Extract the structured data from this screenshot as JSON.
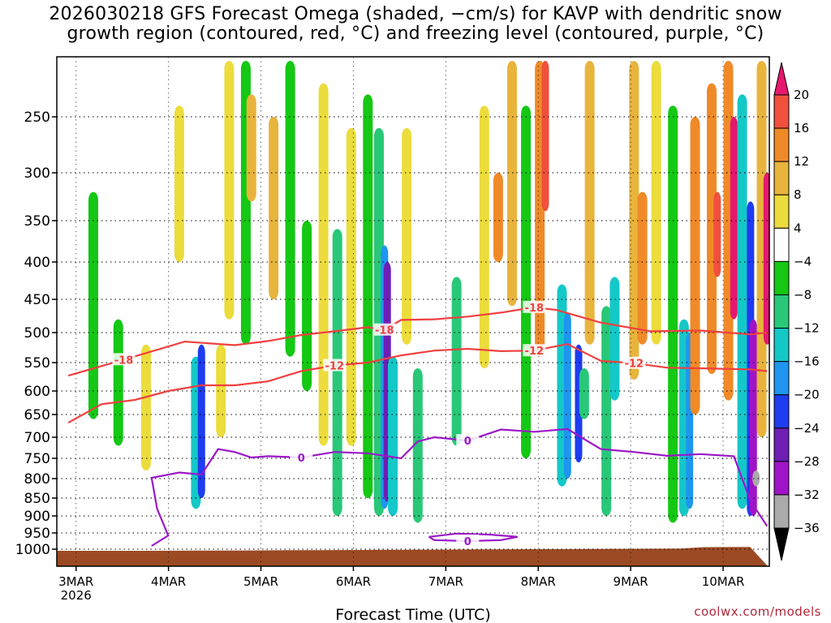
{
  "title_line1": "2026030218 GFS Forecast Omega (shaded, −cm/s) for KAVP with dendritic snow",
  "title_line2": "growth region (contoured, red, °C) and freezing level (contoured, purple, °C)",
  "credit": "coolwx.com/models",
  "chart_data": {
    "type": "heatmap",
    "title": "2026030218 GFS Forecast Omega (shaded, −cm/s) for KAVP with dendritic snow growth region (contoured, red, °C) and freezing level (contoured, purple, °C)",
    "xlabel": "Forecast Time (UTC)",
    "ylabel": "",
    "x_ticks": [
      "3MAR",
      "4MAR",
      "5MAR",
      "6MAR",
      "7MAR",
      "8MAR",
      "9MAR",
      "10MAR"
    ],
    "x_year": "2026",
    "xlim_hours": [
      -5,
      180
    ],
    "y_ticks": [
      250,
      300,
      350,
      400,
      450,
      500,
      550,
      600,
      650,
      700,
      750,
      800,
      850,
      900,
      950,
      1000
    ],
    "ylim_hpa": [
      200,
      1010
    ],
    "colorbar": {
      "ticks": [
        "20",
        "16",
        "12",
        "8",
        "4",
        "−4",
        "−8",
        "−12",
        "−16",
        "−20",
        "−24",
        "−28",
        "−32",
        "−36"
      ],
      "colors": [
        "#e5186e",
        "#f0503c",
        "#f08a28",
        "#e8b43c",
        "#ecdc3c",
        "#ffffff",
        "#14c814",
        "#28c878",
        "#14c8c8",
        "#1e96f0",
        "#1e3cf0",
        "#6e1eb4",
        "#a014c8",
        "#aaaaaa",
        "#000000"
      ]
    },
    "omega_regions": [
      {
        "x": 9,
        "p1": 320,
        "p2": 660,
        "v": -6
      },
      {
        "x": 18,
        "p1": 480,
        "p2": 720,
        "v": -6
      },
      {
        "x": 28,
        "p1": 520,
        "p2": 780,
        "v": 4
      },
      {
        "x": 40,
        "p1": 240,
        "p2": 400,
        "v": 5
      },
      {
        "x": 46,
        "p1": 540,
        "p2": 880,
        "v": -14
      },
      {
        "x": 48,
        "p1": 520,
        "p2": 850,
        "v": -22
      },
      {
        "x": 55,
        "p1": 520,
        "p2": 700,
        "v": 6
      },
      {
        "x": 58,
        "p1": 200,
        "p2": 480,
        "v": 6
      },
      {
        "x": 64,
        "p1": 200,
        "p2": 520,
        "v": -7
      },
      {
        "x": 66,
        "p1": 230,
        "p2": 330,
        "v": 10
      },
      {
        "x": 74,
        "p1": 250,
        "p2": 450,
        "v": 8
      },
      {
        "x": 80,
        "p1": 200,
        "p2": 540,
        "v": -6
      },
      {
        "x": 86,
        "p1": 350,
        "p2": 600,
        "v": -7
      },
      {
        "x": 92,
        "p1": 220,
        "p2": 720,
        "v": 6
      },
      {
        "x": 97,
        "p1": 360,
        "p2": 900,
        "v": -8
      },
      {
        "x": 102,
        "p1": 260,
        "p2": 720,
        "v": 5
      },
      {
        "x": 108,
        "p1": 230,
        "p2": 850,
        "v": -6
      },
      {
        "x": 112,
        "p1": 260,
        "p2": 900,
        "v": -10
      },
      {
        "x": 114,
        "p1": 380,
        "p2": 880,
        "v": -18
      },
      {
        "x": 115,
        "p1": 400,
        "p2": 860,
        "v": -26
      },
      {
        "x": 117,
        "p1": 540,
        "p2": 900,
        "v": -14
      },
      {
        "x": 122,
        "p1": 260,
        "p2": 520,
        "v": 6
      },
      {
        "x": 126,
        "p1": 560,
        "p2": 920,
        "v": -8
      },
      {
        "x": 140,
        "p1": 420,
        "p2": 720,
        "v": -8
      },
      {
        "x": 150,
        "p1": 240,
        "p2": 560,
        "v": 5
      },
      {
        "x": 155,
        "p1": 300,
        "p2": 400,
        "v": 14
      },
      {
        "x": 160,
        "p1": 200,
        "p2": 460,
        "v": 10
      },
      {
        "x": 165,
        "p1": 240,
        "p2": 750,
        "v": -7
      },
      {
        "x": 170,
        "p1": 200,
        "p2": 540,
        "v": 12
      },
      {
        "x": 172,
        "p1": 200,
        "p2": 340,
        "v": 18
      },
      {
        "x": 178,
        "p1": 430,
        "p2": 820,
        "v": -12
      },
      {
        "x": 180,
        "p1": 470,
        "p2": 800,
        "v": -18
      },
      {
        "x": 184,
        "p1": 520,
        "p2": 760,
        "v": -22
      },
      {
        "x": 186,
        "p1": 560,
        "p2": 660,
        "v": -10
      },
      {
        "x": 188,
        "p1": 200,
        "p2": 520,
        "v": 8
      },
      {
        "x": 194,
        "p1": 460,
        "p2": 900,
        "v": -9
      },
      {
        "x": 197,
        "p1": 420,
        "p2": 620,
        "v": -13
      },
      {
        "x": 204,
        "p1": 200,
        "p2": 580,
        "v": 9
      },
      {
        "x": 207,
        "p1": 320,
        "p2": 520,
        "v": 14
      },
      {
        "x": 212,
        "p1": 200,
        "p2": 520,
        "v": 6
      },
      {
        "x": 218,
        "p1": 240,
        "p2": 920,
        "v": -7
      },
      {
        "x": 222,
        "p1": 480,
        "p2": 900,
        "v": -13
      },
      {
        "x": 224,
        "p1": 500,
        "p2": 880,
        "v": -18
      },
      {
        "x": 226,
        "p1": 250,
        "p2": 650,
        "v": 13
      },
      {
        "x": 232,
        "p1": 220,
        "p2": 570,
        "v": 12
      },
      {
        "x": 234,
        "p1": 320,
        "p2": 420,
        "v": 18
      },
      {
        "x": 238,
        "p1": 200,
        "p2": 620,
        "v": 15
      },
      {
        "x": 240,
        "p1": 250,
        "p2": 480,
        "v": 20
      },
      {
        "x": 243,
        "p1": 230,
        "p2": 880,
        "v": -12
      },
      {
        "x": 246,
        "p1": 330,
        "p2": 900,
        "v": -20
      },
      {
        "x": 247,
        "p1": 480,
        "p2": 900,
        "v": -28
      },
      {
        "x": 248,
        "p1": 780,
        "p2": 820,
        "v": -34
      },
      {
        "x": 250,
        "p1": 200,
        "p2": 700,
        "v": 10
      },
      {
        "x": 252,
        "p1": 300,
        "p2": 520,
        "v": 20
      }
    ],
    "contours": {
      "dgz_minus18": {
        "color": "#f04040",
        "label": "-18",
        "points": [
          [
            0,
            573
          ],
          [
            20,
            545
          ],
          [
            42,
            515
          ],
          [
            60,
            521
          ],
          [
            72,
            514
          ],
          [
            84,
            504
          ],
          [
            96,
            498
          ],
          [
            108,
            492
          ],
          [
            114,
            496
          ],
          [
            120,
            481
          ],
          [
            132,
            480
          ],
          [
            144,
            476
          ],
          [
            156,
            470
          ],
          [
            168,
            462
          ],
          [
            176,
            466
          ],
          [
            192,
            485
          ],
          [
            210,
            498
          ],
          [
            228,
            497
          ],
          [
            246,
            503
          ],
          [
            252,
            500
          ]
        ]
      },
      "dgz_minus12": {
        "color": "#f04040",
        "label": "-12",
        "points": [
          [
            0,
            668
          ],
          [
            12,
            628
          ],
          [
            24,
            619
          ],
          [
            36,
            600
          ],
          [
            48,
            590
          ],
          [
            60,
            590
          ],
          [
            72,
            583
          ],
          [
            84,
            565
          ],
          [
            96,
            555
          ],
          [
            108,
            550
          ],
          [
            120,
            538
          ],
          [
            132,
            530
          ],
          [
            144,
            527
          ],
          [
            156,
            531
          ],
          [
            168,
            530
          ],
          [
            180,
            519
          ],
          [
            192,
            547
          ],
          [
            204,
            551
          ],
          [
            216,
            559
          ],
          [
            228,
            560
          ],
          [
            246,
            562
          ],
          [
            252,
            565
          ]
        ]
      },
      "freezing_0": {
        "color": "#9b18c8",
        "label": "0",
        "points": [
          [
            30,
            990
          ],
          [
            36,
            958
          ],
          [
            32,
            880
          ],
          [
            30,
            798
          ],
          [
            40,
            785
          ],
          [
            48,
            790
          ],
          [
            54,
            728
          ],
          [
            60,
            735
          ],
          [
            66,
            748
          ],
          [
            72,
            745
          ],
          [
            84,
            748
          ],
          [
            96,
            735
          ],
          [
            108,
            738
          ],
          [
            120,
            750
          ],
          [
            126,
            710
          ],
          [
            132,
            700
          ],
          [
            144,
            708
          ],
          [
            156,
            683
          ],
          [
            168,
            688
          ],
          [
            180,
            682
          ],
          [
            192,
            728
          ],
          [
            204,
            735
          ],
          [
            216,
            744
          ],
          [
            228,
            740
          ],
          [
            240,
            745
          ],
          [
            246,
            858
          ],
          [
            252,
            930
          ]
        ]
      },
      "freezing_0_loop": {
        "color": "#9b18c8",
        "label": "0",
        "points": [
          [
            130,
            962
          ],
          [
            140,
            952
          ],
          [
            152,
            955
          ],
          [
            162,
            962
          ],
          [
            156,
            972
          ],
          [
            144,
            975
          ],
          [
            132,
            972
          ],
          [
            130,
            962
          ]
        ]
      }
    }
  }
}
